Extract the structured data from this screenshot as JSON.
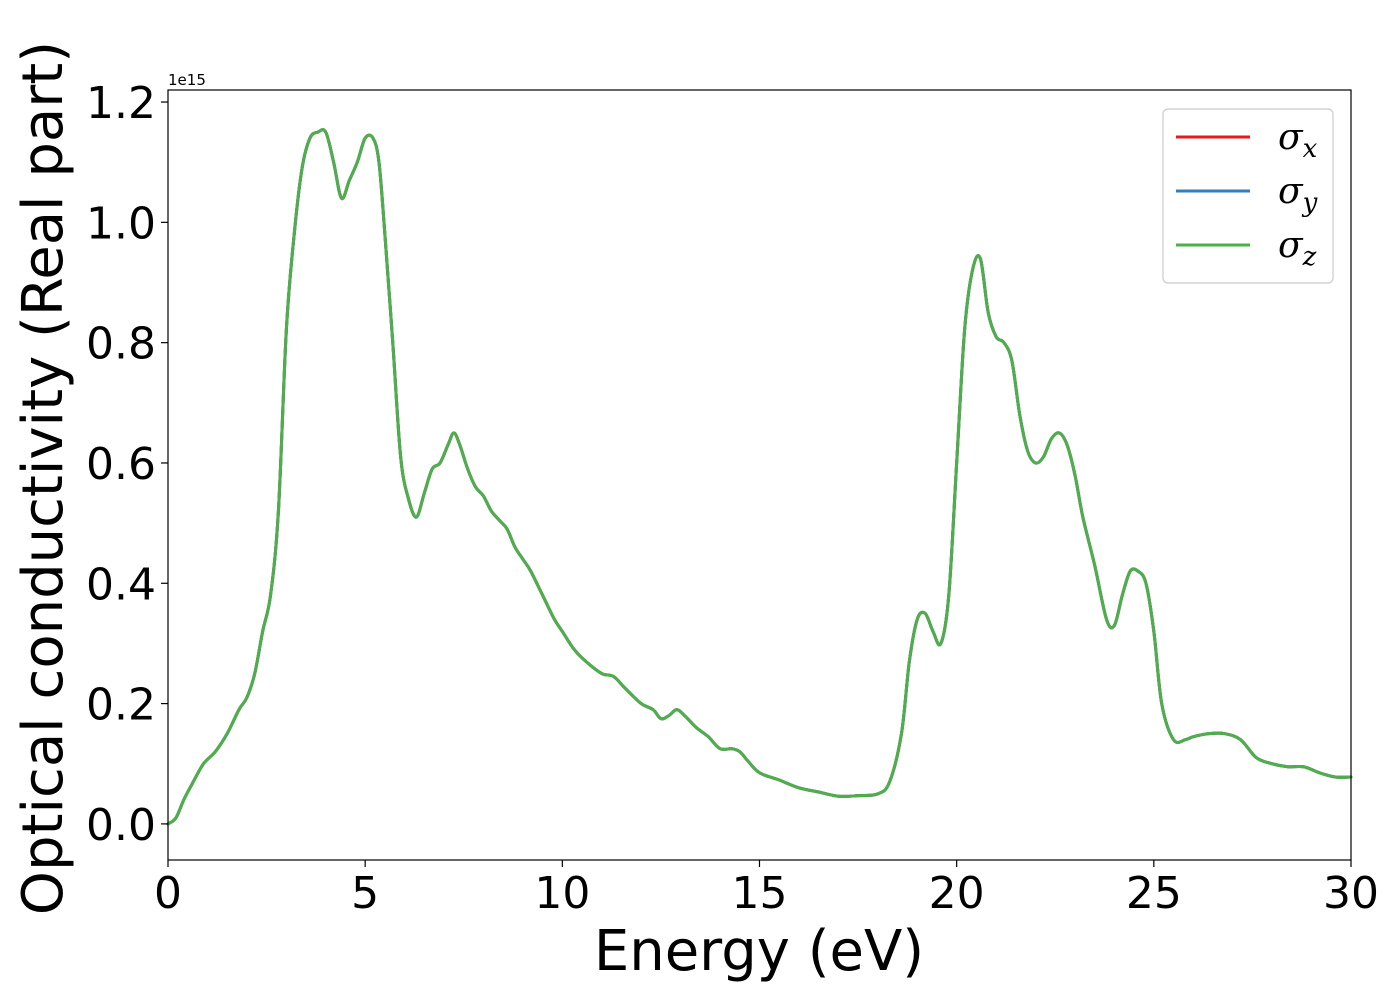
{
  "chart_data": {
    "type": "line",
    "title": "",
    "xlabel": "Energy (eV)",
    "ylabel": "Optical conductivity (Real part)",
    "y_offset_text": "1e15",
    "y_scale": 1000000000000000.0,
    "xlim": [
      0,
      30
    ],
    "ylim": [
      -0.06,
      1.22
    ],
    "x_ticks": [
      0,
      5,
      10,
      15,
      20,
      25,
      30
    ],
    "x_tick_labels": [
      "0",
      "5",
      "10",
      "15",
      "20",
      "25",
      "30"
    ],
    "y_ticks": [
      0.0,
      0.2,
      0.4,
      0.6,
      0.8,
      1.0,
      1.2
    ],
    "y_tick_labels": [
      "0.0",
      "0.2",
      "0.4",
      "0.6",
      "0.8",
      "1.0",
      "1.2"
    ],
    "grid": false,
    "legend_position": "top-right",
    "x": [
      0.0,
      0.2,
      0.4,
      0.6,
      0.9,
      1.2,
      1.5,
      1.8,
      2.0,
      2.2,
      2.4,
      2.6,
      2.8,
      3.0,
      3.2,
      3.4,
      3.6,
      3.8,
      4.0,
      4.2,
      4.4,
      4.6,
      4.8,
      5.0,
      5.2,
      5.35,
      5.5,
      5.7,
      5.9,
      6.1,
      6.3,
      6.5,
      6.7,
      6.9,
      7.1,
      7.25,
      7.4,
      7.6,
      7.8,
      8.0,
      8.2,
      8.4,
      8.6,
      8.8,
      9.0,
      9.2,
      9.5,
      9.8,
      10.0,
      10.3,
      10.6,
      11.0,
      11.3,
      11.6,
      12.0,
      12.3,
      12.5,
      12.7,
      12.9,
      13.1,
      13.4,
      13.7,
      14.0,
      14.3,
      14.5,
      14.7,
      15.0,
      15.5,
      16.0,
      16.5,
      17.0,
      17.5,
      18.0,
      18.3,
      18.6,
      18.8,
      19.0,
      19.2,
      19.4,
      19.6,
      19.8,
      20.0,
      20.2,
      20.4,
      20.6,
      20.8,
      21.0,
      21.2,
      21.4,
      21.6,
      21.8,
      22.0,
      22.2,
      22.4,
      22.6,
      22.8,
      23.0,
      23.2,
      23.5,
      23.8,
      24.0,
      24.2,
      24.4,
      24.6,
      24.8,
      25.0,
      25.2,
      25.5,
      25.8,
      26.0,
      26.4,
      26.8,
      27.2,
      27.6,
      28.0,
      28.4,
      28.8,
      29.2,
      29.6,
      30.0
    ],
    "series": [
      {
        "name": "σx",
        "color": "#e41a1c",
        "values": [
          0.0,
          0.01,
          0.04,
          0.065,
          0.1,
          0.12,
          0.15,
          0.19,
          0.21,
          0.25,
          0.32,
          0.38,
          0.52,
          0.82,
          0.98,
          1.09,
          1.14,
          1.15,
          1.15,
          1.1,
          1.04,
          1.07,
          1.1,
          1.14,
          1.14,
          1.1,
          0.98,
          0.8,
          0.61,
          0.54,
          0.51,
          0.55,
          0.59,
          0.6,
          0.63,
          0.65,
          0.63,
          0.59,
          0.56,
          0.545,
          0.52,
          0.505,
          0.49,
          0.46,
          0.44,
          0.42,
          0.38,
          0.34,
          0.32,
          0.29,
          0.27,
          0.25,
          0.245,
          0.225,
          0.2,
          0.19,
          0.175,
          0.18,
          0.19,
          0.18,
          0.16,
          0.145,
          0.125,
          0.125,
          0.12,
          0.105,
          0.085,
          0.073,
          0.06,
          0.053,
          0.046,
          0.047,
          0.05,
          0.07,
          0.15,
          0.27,
          0.34,
          0.35,
          0.32,
          0.3,
          0.38,
          0.6,
          0.82,
          0.92,
          0.94,
          0.85,
          0.81,
          0.8,
          0.77,
          0.68,
          0.62,
          0.6,
          0.61,
          0.64,
          0.65,
          0.63,
          0.58,
          0.51,
          0.43,
          0.34,
          0.33,
          0.38,
          0.42,
          0.42,
          0.4,
          0.32,
          0.2,
          0.14,
          0.14,
          0.145,
          0.15,
          0.15,
          0.14,
          0.11,
          0.1,
          0.095,
          0.095,
          0.085,
          0.078,
          0.078
        ]
      },
      {
        "name": "σy",
        "color": "#377eb8",
        "values": [
          0.0,
          0.01,
          0.04,
          0.065,
          0.1,
          0.12,
          0.15,
          0.19,
          0.21,
          0.25,
          0.32,
          0.38,
          0.52,
          0.82,
          0.98,
          1.09,
          1.14,
          1.15,
          1.15,
          1.1,
          1.04,
          1.07,
          1.1,
          1.14,
          1.14,
          1.1,
          0.98,
          0.8,
          0.61,
          0.54,
          0.51,
          0.55,
          0.59,
          0.6,
          0.63,
          0.65,
          0.63,
          0.59,
          0.56,
          0.545,
          0.52,
          0.505,
          0.49,
          0.46,
          0.44,
          0.42,
          0.38,
          0.34,
          0.32,
          0.29,
          0.27,
          0.25,
          0.245,
          0.225,
          0.2,
          0.19,
          0.175,
          0.18,
          0.19,
          0.18,
          0.16,
          0.145,
          0.125,
          0.125,
          0.12,
          0.105,
          0.085,
          0.073,
          0.06,
          0.053,
          0.046,
          0.047,
          0.05,
          0.07,
          0.15,
          0.27,
          0.34,
          0.35,
          0.32,
          0.3,
          0.38,
          0.6,
          0.82,
          0.92,
          0.94,
          0.85,
          0.81,
          0.8,
          0.77,
          0.68,
          0.62,
          0.6,
          0.61,
          0.64,
          0.65,
          0.63,
          0.58,
          0.51,
          0.43,
          0.34,
          0.33,
          0.38,
          0.42,
          0.42,
          0.4,
          0.32,
          0.2,
          0.14,
          0.14,
          0.145,
          0.15,
          0.15,
          0.14,
          0.11,
          0.1,
          0.095,
          0.095,
          0.085,
          0.078,
          0.078
        ]
      },
      {
        "name": "σz",
        "color": "#4daf4a",
        "values": [
          0.0,
          0.01,
          0.04,
          0.065,
          0.1,
          0.12,
          0.15,
          0.19,
          0.21,
          0.25,
          0.32,
          0.38,
          0.52,
          0.82,
          0.98,
          1.09,
          1.14,
          1.15,
          1.15,
          1.1,
          1.04,
          1.07,
          1.1,
          1.14,
          1.14,
          1.1,
          0.98,
          0.8,
          0.61,
          0.54,
          0.51,
          0.55,
          0.59,
          0.6,
          0.63,
          0.65,
          0.63,
          0.59,
          0.56,
          0.545,
          0.52,
          0.505,
          0.49,
          0.46,
          0.44,
          0.42,
          0.38,
          0.34,
          0.32,
          0.29,
          0.27,
          0.25,
          0.245,
          0.225,
          0.2,
          0.19,
          0.175,
          0.18,
          0.19,
          0.18,
          0.16,
          0.145,
          0.125,
          0.125,
          0.12,
          0.105,
          0.085,
          0.073,
          0.06,
          0.053,
          0.046,
          0.047,
          0.05,
          0.07,
          0.15,
          0.27,
          0.34,
          0.35,
          0.32,
          0.3,
          0.38,
          0.6,
          0.82,
          0.92,
          0.94,
          0.85,
          0.81,
          0.8,
          0.77,
          0.68,
          0.62,
          0.6,
          0.61,
          0.64,
          0.65,
          0.63,
          0.58,
          0.51,
          0.43,
          0.34,
          0.33,
          0.38,
          0.42,
          0.42,
          0.4,
          0.32,
          0.2,
          0.14,
          0.14,
          0.145,
          0.15,
          0.15,
          0.14,
          0.11,
          0.1,
          0.095,
          0.095,
          0.085,
          0.078,
          0.078
        ]
      }
    ],
    "legend": [
      {
        "symbol": "σ",
        "sub": "x",
        "color": "#e41a1c"
      },
      {
        "symbol": "σ",
        "sub": "y",
        "color": "#377eb8"
      },
      {
        "symbol": "σ",
        "sub": "z",
        "color": "#4daf4a"
      }
    ]
  }
}
